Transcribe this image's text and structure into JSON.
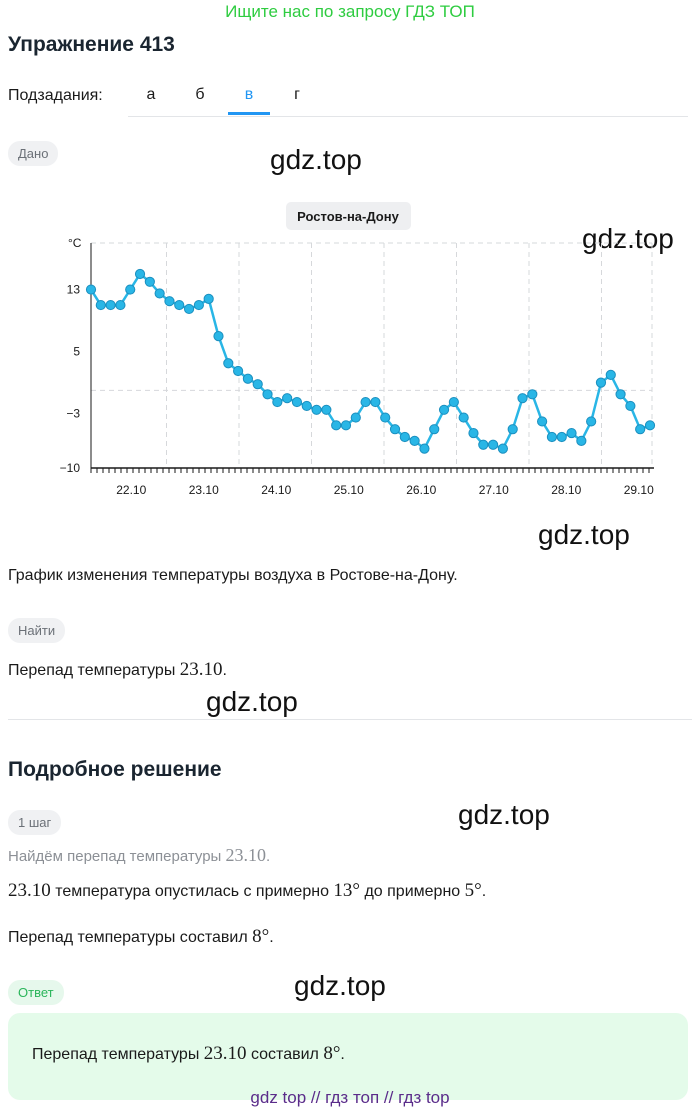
{
  "banner": "Ищите нас по запросу ГДЗ ТОП",
  "title": "Упражнение 413",
  "subtasks": {
    "label": "Подзадания:",
    "items": [
      "а",
      "б",
      "в",
      "г"
    ],
    "active": "в"
  },
  "given_label": "Дано",
  "watermark": "gdz.top",
  "chart_data": {
    "type": "line",
    "title": "Ростов-на-Дону",
    "ylabel": "°C",
    "ylim": [
      -10,
      19
    ],
    "yticks": [
      13,
      5,
      -3,
      -10
    ],
    "x_labels": [
      "22.10",
      "23.10",
      "24.10",
      "25.10",
      "26.10",
      "27.10",
      "28.10",
      "29.10"
    ],
    "grid": "dashed vertical",
    "color": "#29b6e6",
    "series": [
      {
        "values": [
          13,
          11,
          11,
          11,
          13,
          15,
          14,
          12.5,
          11.5,
          11,
          10.5,
          11,
          11.8,
          7,
          3.5,
          2.5,
          1.5,
          0.8,
          -0.5,
          -1.5,
          -1,
          -1.5,
          -2,
          -2.5,
          -2.5,
          -4.5,
          -4.5,
          -3.5,
          -1.5,
          -1.5,
          -3.5,
          -5,
          -6,
          -6.5,
          -7.5,
          -5,
          -2.5,
          -1.5,
          -3.5,
          -5.5,
          -7,
          -7,
          -7.5,
          -5,
          -1,
          -0.5,
          -4,
          -6,
          -6,
          -5.5,
          -6.5,
          -4,
          1,
          2,
          -0.5,
          -2,
          -5,
          -4.5
        ]
      }
    ]
  },
  "given_text": "График изменения температуры воздуха в Ростове-на-Дону.",
  "find_label": "Найти",
  "find_text": {
    "prefix": "Перепад температуры ",
    "math": "23.10",
    "suffix": "."
  },
  "solution_title": "Подробное решение",
  "step_label": "1 шаг",
  "step_text": {
    "prefix": "Найдём перепад температуры ",
    "math": "23.10",
    "suffix": "."
  },
  "line1": {
    "m1": "23.10",
    "t1": " температура опустилась с примерно ",
    "m2": "13°",
    "t2": " до примерно ",
    "m3": "5°",
    "t3": "."
  },
  "line2": {
    "t1": "Перепад температуры составил ",
    "m1": "8°",
    "t2": "."
  },
  "answer_label": "Ответ",
  "answer": {
    "t1": "Перепад температуры ",
    "m1": "23.10",
    "t2": " составил ",
    "m2": "8°",
    "t3": "."
  },
  "footer": "gdz top  //  гдз топ  //  гдз top"
}
